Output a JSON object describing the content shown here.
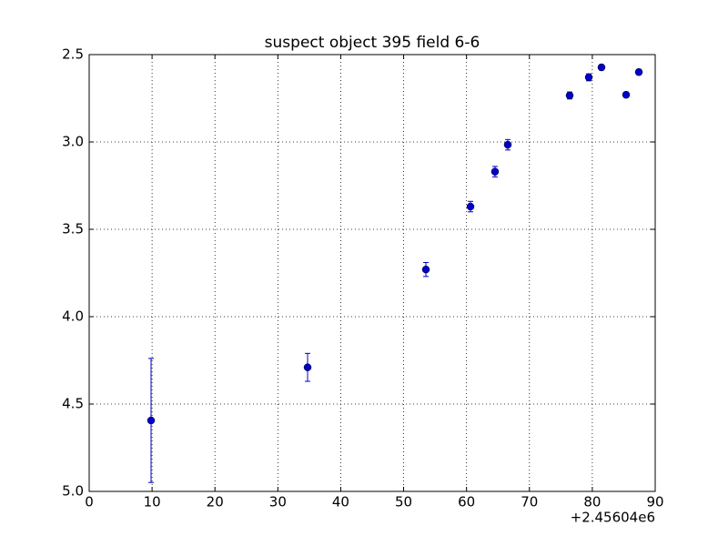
{
  "chart_data": {
    "type": "errorbar",
    "title": "suspect object 395 field 6-6",
    "x_offset_label": "+2.45604e6",
    "x": [
      9.84,
      34.73,
      53.54,
      60.63,
      64.53,
      66.56,
      76.4,
      79.44,
      81.46,
      85.37,
      87.4
    ],
    "values": [
      4.594,
      4.29,
      3.73,
      3.37,
      3.17,
      3.016,
      2.734,
      2.63,
      2.573,
      2.73,
      2.6
    ],
    "errors": [
      0.355,
      0.08,
      0.04,
      0.03,
      0.03,
      0.03,
      0.02,
      0.02,
      0.015,
      0.015,
      0.015
    ],
    "color": "#0000cc",
    "xlim": [
      0,
      90
    ],
    "xticks": [
      0,
      10,
      20,
      30,
      40,
      50,
      60,
      70,
      80,
      90
    ],
    "ylim": [
      2.5,
      5.0
    ],
    "y_inverted": true,
    "yticks": [
      2.5,
      {
        "value": 3.0,
        "label": "3.0"
      },
      3.5,
      {
        "value": 4.0,
        "label": "4.0"
      },
      4.5,
      {
        "value": 5.0,
        "label": "5.0"
      }
    ],
    "grid": true
  }
}
